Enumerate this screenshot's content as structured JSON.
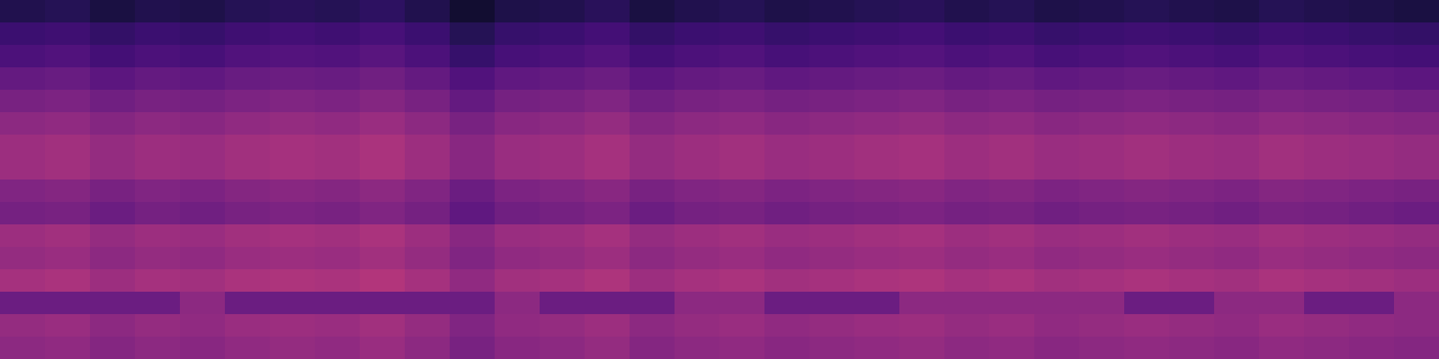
{
  "chart_data": {
    "type": "heatmap",
    "tick_labels": false,
    "color": "magma",
    "zlim": [
      0,
      100
    ],
    "cells": [
      [
        14,
        15,
        12,
        14,
        13,
        15,
        16,
        15,
        17,
        14,
        9,
        13,
        14,
        16,
        12,
        14,
        15,
        13,
        14,
        15,
        16,
        14,
        15,
        13,
        14,
        15,
        14,
        13,
        15,
        14,
        13,
        12
      ],
      [
        20,
        21,
        18,
        20,
        19,
        21,
        22,
        21,
        23,
        20,
        15,
        19,
        20,
        22,
        18,
        20,
        21,
        19,
        20,
        21,
        22,
        20,
        21,
        19,
        20,
        21,
        20,
        19,
        21,
        20,
        19,
        18
      ],
      [
        24,
        25,
        22,
        24,
        23,
        25,
        26,
        25,
        27,
        24,
        19,
        23,
        24,
        26,
        22,
        24,
        25,
        23,
        24,
        25,
        26,
        24,
        25,
        23,
        24,
        25,
        24,
        23,
        25,
        24,
        23,
        22
      ],
      [
        30,
        31,
        28,
        30,
        29,
        31,
        32,
        31,
        33,
        30,
        25,
        29,
        30,
        32,
        28,
        30,
        31,
        29,
        30,
        31,
        32,
        30,
        31,
        29,
        30,
        31,
        30,
        29,
        31,
        30,
        29,
        28
      ],
      [
        35,
        36,
        33,
        35,
        34,
        36,
        37,
        36,
        38,
        35,
        30,
        34,
        35,
        37,
        33,
        35,
        36,
        34,
        35,
        36,
        37,
        35,
        36,
        34,
        35,
        36,
        35,
        34,
        36,
        35,
        34,
        33
      ],
      [
        40,
        41,
        38,
        40,
        39,
        41,
        42,
        41,
        43,
        40,
        35,
        39,
        40,
        42,
        38,
        40,
        41,
        39,
        40,
        41,
        42,
        40,
        41,
        39,
        40,
        41,
        40,
        39,
        41,
        40,
        39,
        38
      ],
      [
        44,
        45,
        42,
        44,
        43,
        45,
        46,
        45,
        47,
        44,
        39,
        43,
        44,
        46,
        42,
        44,
        45,
        43,
        44,
        45,
        46,
        44,
        45,
        43,
        44,
        45,
        44,
        43,
        45,
        44,
        43,
        42
      ],
      [
        44,
        45,
        42,
        44,
        43,
        45,
        46,
        45,
        47,
        44,
        39,
        43,
        44,
        46,
        42,
        44,
        45,
        43,
        44,
        45,
        46,
        44,
        45,
        43,
        44,
        45,
        44,
        43,
        45,
        44,
        43,
        42
      ],
      [
        37,
        38,
        35,
        37,
        36,
        38,
        39,
        38,
        40,
        37,
        32,
        36,
        37,
        39,
        35,
        37,
        38,
        36,
        37,
        38,
        39,
        37,
        38,
        36,
        37,
        38,
        37,
        36,
        38,
        37,
        36,
        35
      ],
      [
        34,
        35,
        32,
        34,
        33,
        35,
        36,
        35,
        37,
        34,
        29,
        33,
        34,
        36,
        32,
        34,
        35,
        33,
        34,
        35,
        36,
        34,
        35,
        33,
        34,
        35,
        34,
        33,
        35,
        34,
        33,
        32
      ],
      [
        44,
        45,
        42,
        44,
        43,
        45,
        46,
        45,
        47,
        44,
        39,
        43,
        44,
        46,
        42,
        44,
        45,
        43,
        44,
        45,
        46,
        44,
        45,
        43,
        44,
        45,
        44,
        43,
        45,
        44,
        43,
        42
      ],
      [
        42,
        43,
        40,
        42,
        41,
        43,
        44,
        43,
        45,
        42,
        37,
        41,
        42,
        44,
        40,
        42,
        43,
        41,
        42,
        43,
        44,
        42,
        43,
        41,
        42,
        43,
        42,
        41,
        43,
        42,
        41,
        40
      ],
      [
        46,
        47,
        44,
        46,
        45,
        47,
        48,
        47,
        49,
        46,
        41,
        45,
        46,
        48,
        44,
        46,
        47,
        45,
        46,
        47,
        48,
        46,
        47,
        45,
        46,
        47,
        46,
        45,
        47,
        46,
        45,
        44
      ],
      [
        32,
        32,
        32,
        32,
        40,
        32,
        32,
        32,
        32,
        32,
        32,
        40,
        32,
        32,
        32,
        40,
        40,
        32,
        32,
        32,
        40,
        40,
        40,
        40,
        40,
        32,
        32,
        40,
        40,
        32,
        32,
        40
      ],
      [
        42,
        43,
        40,
        42,
        41,
        43,
        44,
        43,
        45,
        42,
        37,
        41,
        42,
        44,
        40,
        42,
        43,
        41,
        42,
        43,
        44,
        42,
        43,
        41,
        42,
        43,
        42,
        41,
        43,
        42,
        41,
        40
      ],
      [
        40,
        41,
        38,
        40,
        39,
        41,
        42,
        41,
        43,
        40,
        35,
        39,
        40,
        42,
        38,
        40,
        41,
        39,
        40,
        41,
        42,
        40,
        41,
        39,
        40,
        41,
        40,
        39,
        41,
        40,
        39,
        38
      ]
    ]
  }
}
